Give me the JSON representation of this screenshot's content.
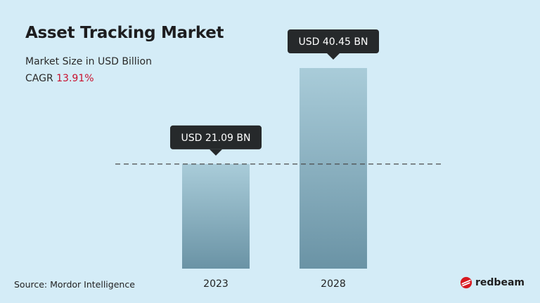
{
  "header": {
    "title": "Asset Tracking Market",
    "subtitle": "Market Size in USD Billion",
    "cagr_label": "CAGR",
    "cagr_value": "13.91%"
  },
  "footer": {
    "source": "Source: Mordor Intelligence",
    "brand": "redbeam"
  },
  "colors": {
    "background": "#d4ecf7",
    "bar_top": "#a9ccd9",
    "bar_bottom": "#6a93a5",
    "tooltip": "#26292b",
    "cagr": "#c8102e",
    "brand_icon": "#d71920"
  },
  "chart_data": {
    "type": "bar",
    "categories": [
      "2023",
      "2028"
    ],
    "values": [
      21.09,
      40.45
    ],
    "data_labels": [
      "USD 21.09 BN",
      "USD 40.45 BN"
    ],
    "title": "Asset Tracking Market",
    "ylabel": "",
    "xlabel": "",
    "reference_line": "dashed line at 2023 value",
    "grid": false
  }
}
